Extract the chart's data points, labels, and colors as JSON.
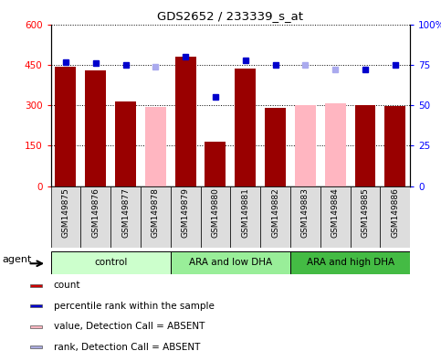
{
  "title": "GDS2652 / 233339_s_at",
  "samples": [
    "GSM149875",
    "GSM149876",
    "GSM149877",
    "GSM149878",
    "GSM149879",
    "GSM149880",
    "GSM149881",
    "GSM149882",
    "GSM149883",
    "GSM149884",
    "GSM149885",
    "GSM149886"
  ],
  "bar_values": [
    445,
    430,
    315,
    null,
    480,
    165,
    437,
    290,
    null,
    null,
    300,
    298
  ],
  "bar_absent_values": [
    null,
    null,
    null,
    295,
    null,
    null,
    null,
    null,
    302,
    308,
    null,
    null
  ],
  "percentile_values": [
    77,
    76,
    75,
    74,
    80,
    55,
    78,
    75,
    75,
    72,
    72,
    75
  ],
  "percentile_absent": [
    false,
    false,
    false,
    true,
    false,
    false,
    false,
    false,
    true,
    true,
    false,
    false
  ],
  "bar_color": "#990000",
  "bar_absent_color": "#FFB6C1",
  "dot_color": "#0000CC",
  "dot_absent_color": "#AAAAEE",
  "ylim_left": [
    0,
    600
  ],
  "ylim_right": [
    0,
    100
  ],
  "yticks_left": [
    0,
    150,
    300,
    450,
    600
  ],
  "ytick_labels_left": [
    "0",
    "150",
    "300",
    "450",
    "600"
  ],
  "yticks_right": [
    0,
    25,
    50,
    75,
    100
  ],
  "ytick_labels_right": [
    "0",
    "25",
    "50",
    "75",
    "100%"
  ],
  "groups": [
    {
      "label": "control",
      "start": 0,
      "end": 3,
      "color": "#ccffcc"
    },
    {
      "label": "ARA and low DHA",
      "start": 4,
      "end": 7,
      "color": "#99ee99"
    },
    {
      "label": "ARA and high DHA",
      "start": 8,
      "end": 11,
      "color": "#44bb44"
    }
  ],
  "legend_items": [
    {
      "label": "count",
      "color": "#CC0000"
    },
    {
      "label": "percentile rank within the sample",
      "color": "#0000CC"
    },
    {
      "label": "value, Detection Call = ABSENT",
      "color": "#FFB6C1"
    },
    {
      "label": "rank, Detection Call = ABSENT",
      "color": "#AAAADD"
    }
  ],
  "agent_label": "agent",
  "background_color": "#ffffff",
  "xtick_bg": "#dddddd"
}
